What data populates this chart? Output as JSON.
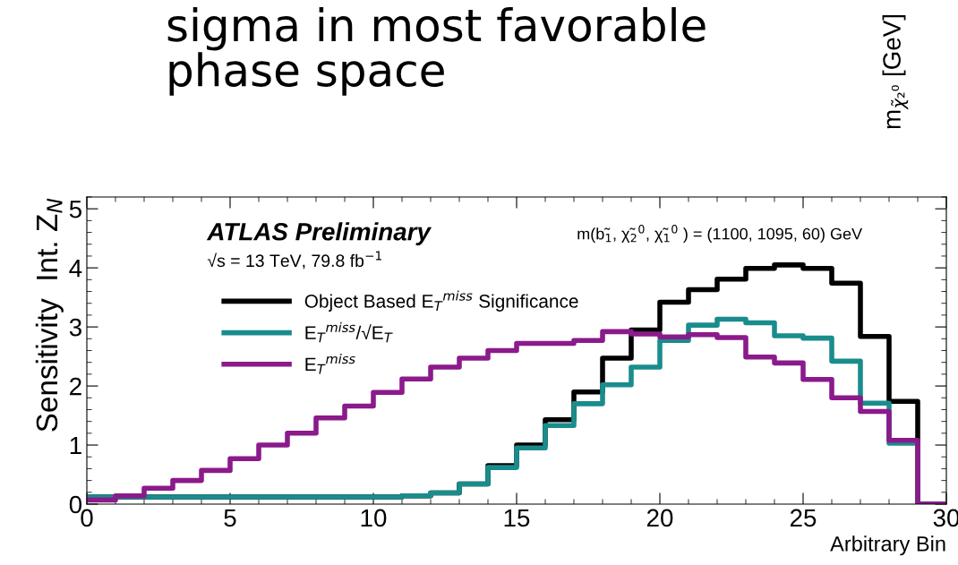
{
  "chart_data": {
    "type": "step",
    "title": "sigma in most favorable\nphase space",
    "xlabel": "Arbitrary Bin",
    "ylabel": "Sensitivity  Int. Z$_{N}$",
    "x": [
      0,
      1,
      2,
      3,
      4,
      5,
      6,
      7,
      8,
      9,
      10,
      11,
      12,
      13,
      14,
      15,
      16,
      17,
      18,
      19,
      20,
      21,
      22,
      23,
      24,
      25,
      26,
      27,
      28,
      29,
      30
    ],
    "series": [
      {
        "name": "Object Based E$_{T}$$^{miss}$ Significance",
        "color": "#000000",
        "values": [
          0.12,
          0.12,
          0.12,
          0.12,
          0.12,
          0.12,
          0.12,
          0.12,
          0.12,
          0.12,
          0.12,
          0.14,
          0.19,
          0.34,
          0.65,
          1.0,
          1.43,
          1.9,
          2.47,
          2.95,
          3.42,
          3.63,
          3.81,
          3.99,
          4.05,
          3.99,
          3.74,
          2.84,
          1.74,
          0,
          0
        ]
      },
      {
        "name": "E$_{T}$$^{miss}$/√E$_{T}$",
        "color": "#1a8c8c",
        "values": [
          0.12,
          0.12,
          0.12,
          0.12,
          0.12,
          0.12,
          0.12,
          0.12,
          0.12,
          0.12,
          0.12,
          0.14,
          0.19,
          0.34,
          0.62,
          0.95,
          1.33,
          1.7,
          2.02,
          2.32,
          2.77,
          3.03,
          3.13,
          3.07,
          2.85,
          2.81,
          2.42,
          1.71,
          1.03,
          0,
          0
        ]
      },
      {
        "name": "E$_{T}$$^{miss}$",
        "color": "#8b1a8b",
        "values": [
          0.07,
          0.14,
          0.27,
          0.4,
          0.57,
          0.77,
          1.0,
          1.2,
          1.46,
          1.66,
          1.89,
          2.12,
          2.32,
          2.47,
          2.6,
          2.72,
          2.72,
          2.77,
          2.92,
          2.88,
          2.83,
          2.87,
          2.82,
          2.49,
          2.39,
          2.11,
          1.8,
          1.57,
          1.08,
          0,
          0
        ]
      }
    ],
    "xlim": [
      0,
      30
    ],
    "ylim": [
      0,
      5.2
    ],
    "xticks": [
      0,
      5,
      10,
      15,
      20,
      25,
      30
    ],
    "yticks": [
      0,
      1,
      2,
      3,
      4,
      5
    ],
    "legend": "top left",
    "grid": false,
    "line_style": "solid",
    "annotations": [
      "ATLAS Preliminary",
      "√s = 13 TeV, 79.8 fb$^{−1}$",
      "m(b̃$_{1}$, χ̃$_{2}$$^{0}$, χ̃$_{1}$$^{0}$ ) = (1100, 1095, 60) GeV",
      "m$_{χ̃₂⁰}$ [GeV]"
    ]
  }
}
